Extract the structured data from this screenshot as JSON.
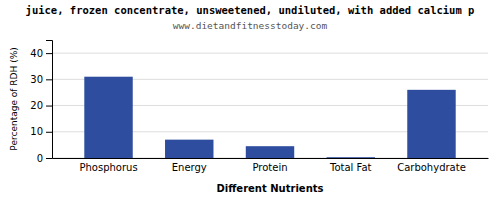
{
  "chart_data": {
    "type": "bar",
    "title": "juice, frozen concentrate, unsweetened, undiluted, with added calcium p",
    "subtitle": "www.dietandfitnesstoday.com",
    "categories": [
      "Phosphorus",
      "Energy",
      "Protein",
      "Total Fat",
      "Carbohydrate"
    ],
    "values": [
      31,
      7,
      4.5,
      0.3,
      26
    ],
    "color": "#2e4d9e",
    "ylabel": "Percentage of RDH (%)",
    "xlabel": "Different Nutrients",
    "ylim": [
      0,
      45
    ],
    "yticks": [
      0,
      10,
      20,
      30,
      40
    ],
    "grid": true
  }
}
